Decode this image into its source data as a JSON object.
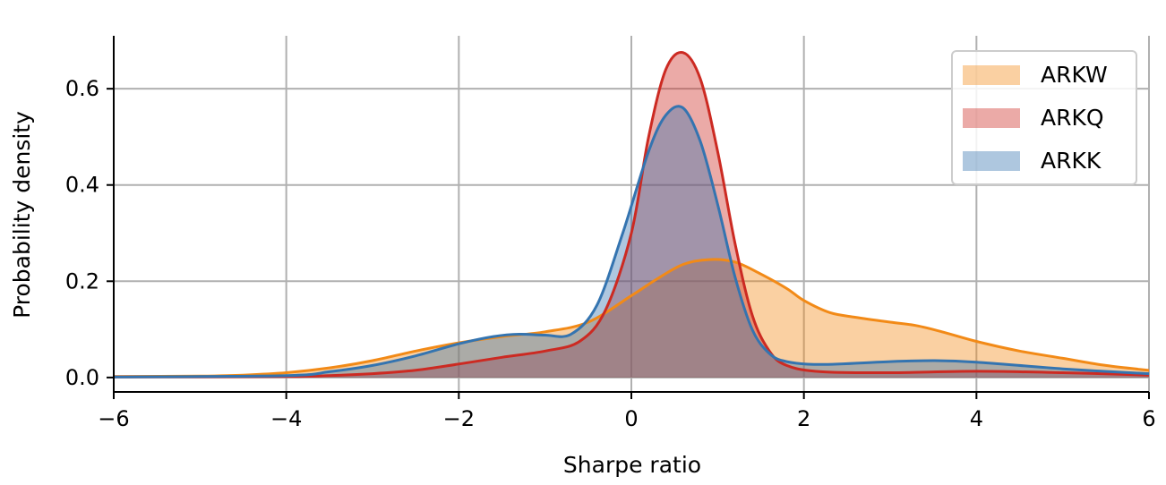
{
  "chart_data": {
    "type": "area",
    "title": "",
    "xlabel": "Sharpe ratio",
    "ylabel": "Probability density",
    "xlim": [
      -6,
      6
    ],
    "ylim": [
      -0.03,
      0.71
    ],
    "xticks": [
      -6,
      -4,
      -2,
      0,
      2,
      4,
      6
    ],
    "xtick_labels": [
      "−6",
      "−4",
      "−2",
      "0",
      "2",
      "4",
      "6"
    ],
    "yticks": [
      0.0,
      0.2,
      0.4,
      0.6
    ],
    "ytick_labels": [
      "0.0",
      "0.2",
      "0.4",
      "0.6"
    ],
    "grid": true,
    "legend_position": "top-right",
    "series": [
      {
        "name": "ARKW",
        "line_color": "#f28a17",
        "fill_color": "#f9bd82",
        "x": [
          -6,
          -5,
          -4.5,
          -4,
          -3.5,
          -3,
          -2.5,
          -2,
          -1.5,
          -1,
          -0.5,
          0,
          0.3,
          0.6,
          0.9,
          1.2,
          1.5,
          1.8,
          2,
          2.3,
          2.6,
          3,
          3.3,
          3.6,
          4,
          4.5,
          5,
          5.5,
          6
        ],
        "y": [
          0.002,
          0.003,
          0.005,
          0.01,
          0.02,
          0.035,
          0.055,
          0.072,
          0.085,
          0.095,
          0.115,
          0.17,
          0.205,
          0.235,
          0.245,
          0.24,
          0.215,
          0.185,
          0.16,
          0.135,
          0.125,
          0.115,
          0.108,
          0.095,
          0.075,
          0.055,
          0.04,
          0.025,
          0.015
        ]
      },
      {
        "name": "ARKQ",
        "line_color": "#cc2a22",
        "fill_color": "#e8a3a2",
        "x": [
          -6,
          -4,
          -3.5,
          -3,
          -2.5,
          -2,
          -1.5,
          -1,
          -0.6,
          -0.3,
          0,
          0.2,
          0.4,
          0.6,
          0.8,
          1.0,
          1.2,
          1.4,
          1.6,
          1.8,
          2.2,
          3,
          4,
          5,
          6
        ],
        "y": [
          0.001,
          0.002,
          0.004,
          0.008,
          0.015,
          0.028,
          0.042,
          0.055,
          0.075,
          0.14,
          0.3,
          0.5,
          0.64,
          0.675,
          0.62,
          0.47,
          0.28,
          0.13,
          0.055,
          0.025,
          0.012,
          0.01,
          0.013,
          0.01,
          0.005
        ]
      },
      {
        "name": "ARKK",
        "line_color": "#3474b0",
        "fill_color": "#a8c6e0",
        "x": [
          -6,
          -4,
          -3.5,
          -3,
          -2.5,
          -2,
          -1.6,
          -1.3,
          -1,
          -0.7,
          -0.4,
          -0.1,
          0.2,
          0.4,
          0.6,
          0.8,
          1.0,
          1.2,
          1.4,
          1.6,
          1.8,
          2.2,
          3,
          3.5,
          4,
          5,
          6
        ],
        "y": [
          0.001,
          0.004,
          0.012,
          0.025,
          0.045,
          0.07,
          0.085,
          0.09,
          0.088,
          0.09,
          0.15,
          0.3,
          0.47,
          0.545,
          0.56,
          0.49,
          0.36,
          0.21,
          0.1,
          0.05,
          0.033,
          0.027,
          0.033,
          0.035,
          0.032,
          0.018,
          0.008
        ]
      }
    ]
  }
}
